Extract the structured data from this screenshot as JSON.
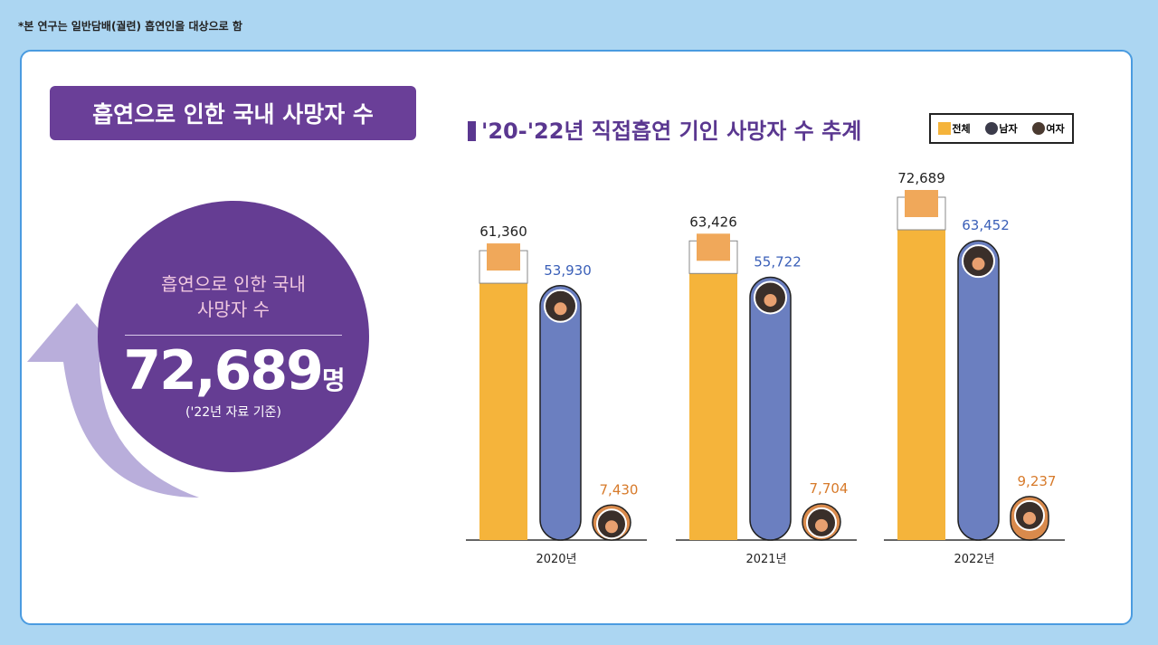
{
  "note": "*본 연구는 일반담배(궐련) 흡연인을 대상으로 함",
  "left": {
    "title": "흡연으로 인한 국내 사망자 수",
    "circle_line1": "흡연으로 인한 국내",
    "circle_line2": "사망자 수",
    "value": "72,689",
    "unit": "명",
    "basis": "('22년 자료 기준)"
  },
  "colors": {
    "total": "#f5b43b",
    "male": "#6b7fc0",
    "female": "#d98a4c",
    "purple": "#653d93"
  },
  "chart_data": {
    "type": "bar",
    "title": "'20-'22년 직접흡연 기인 사망자 수 추계",
    "categories": [
      "2020년",
      "2021년",
      "2022년"
    ],
    "series": [
      {
        "name": "전체",
        "values": [
          61360,
          63426,
          72689
        ],
        "labels": [
          "61,360",
          "63,426",
          "72,689"
        ],
        "label_color": "#222222"
      },
      {
        "name": "남자",
        "values": [
          53930,
          55722,
          63452
        ],
        "labels": [
          "53,930",
          "55,722",
          "63,452"
        ],
        "label_color": "#3a5fb8"
      },
      {
        "name": "여자",
        "values": [
          7430,
          7704,
          9237
        ],
        "labels": [
          "7,430",
          "7,704",
          "9,237"
        ],
        "label_color": "#d77a2a"
      }
    ],
    "ylim": [
      0,
      80000
    ]
  }
}
